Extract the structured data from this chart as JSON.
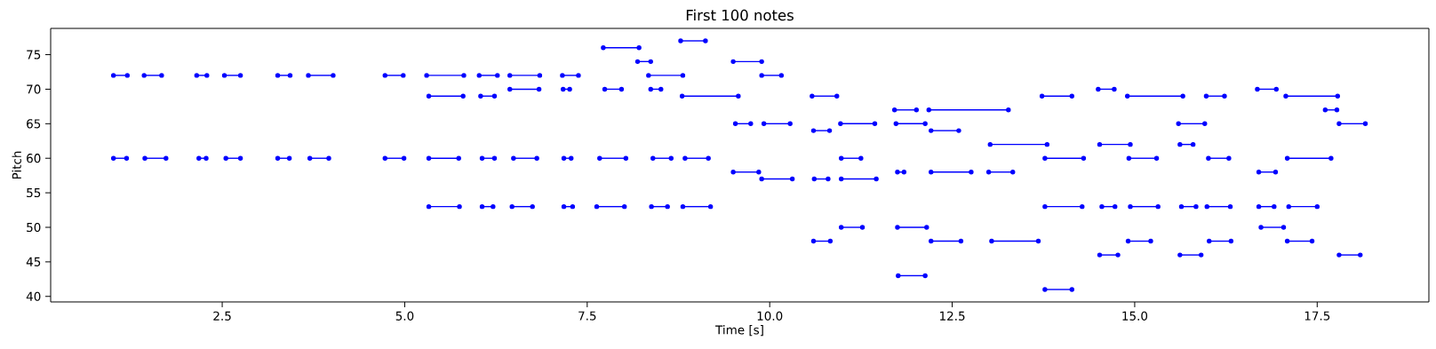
{
  "chart_data": {
    "type": "line",
    "title": "First 100 notes",
    "xlabel": "Time [s]",
    "ylabel": "Pitch",
    "marker": "circle",
    "line_style": "solid",
    "grid": false,
    "xlim": [
      0.15,
      19.03
    ],
    "ylim": [
      39.2,
      78.8
    ],
    "xticks": [
      {
        "value": 2.5,
        "label": "2.5"
      },
      {
        "value": 5.0,
        "label": "5.0"
      },
      {
        "value": 7.5,
        "label": "7.5"
      },
      {
        "value": 10.0,
        "label": "10.0"
      },
      {
        "value": 12.5,
        "label": "12.5"
      },
      {
        "value": 15.0,
        "label": "15.0"
      },
      {
        "value": 17.5,
        "label": "17.5"
      }
    ],
    "yticks": [
      40,
      45,
      50,
      55,
      60,
      65,
      70,
      75
    ],
    "series": [
      {
        "color": "#0000ff",
        "x": [
          1.01,
          1.2
        ],
        "values": [
          72,
          72
        ]
      },
      {
        "color": "#0000ff",
        "x": [
          1.43,
          1.67
        ],
        "values": [
          72,
          72
        ]
      },
      {
        "color": "#0000ff",
        "x": [
          2.15,
          2.29
        ],
        "values": [
          72,
          72
        ]
      },
      {
        "color": "#0000ff",
        "x": [
          2.53,
          2.75
        ],
        "values": [
          72,
          72
        ]
      },
      {
        "color": "#0000ff",
        "x": [
          3.26,
          3.43
        ],
        "values": [
          72,
          72
        ]
      },
      {
        "color": "#0000ff",
        "x": [
          3.68,
          4.02
        ],
        "values": [
          72,
          72
        ]
      },
      {
        "color": "#0000ff",
        "x": [
          1.01,
          1.19
        ],
        "values": [
          60,
          60
        ]
      },
      {
        "color": "#0000ff",
        "x": [
          1.44,
          1.73
        ],
        "values": [
          60,
          60
        ]
      },
      {
        "color": "#0000ff",
        "x": [
          2.18,
          2.28
        ],
        "values": [
          60,
          60
        ]
      },
      {
        "color": "#0000ff",
        "x": [
          2.55,
          2.75
        ],
        "values": [
          60,
          60
        ]
      },
      {
        "color": "#0000ff",
        "x": [
          3.26,
          3.42
        ],
        "values": [
          60,
          60
        ]
      },
      {
        "color": "#0000ff",
        "x": [
          3.7,
          3.96
        ],
        "values": [
          60,
          60
        ]
      },
      {
        "color": "#0000ff",
        "x": [
          4.73,
          4.98
        ],
        "values": [
          72,
          72
        ]
      },
      {
        "color": "#0000ff",
        "x": [
          5.3,
          5.81
        ],
        "values": [
          72,
          72
        ]
      },
      {
        "color": "#0000ff",
        "x": [
          6.02,
          6.27
        ],
        "values": [
          72,
          72
        ]
      },
      {
        "color": "#0000ff",
        "x": [
          6.44,
          6.85
        ],
        "values": [
          72,
          72
        ]
      },
      {
        "color": "#0000ff",
        "x": [
          7.16,
          7.38
        ],
        "values": [
          72,
          72
        ]
      },
      {
        "color": "#0000ff",
        "x": [
          8.34,
          8.81
        ],
        "values": [
          72,
          72
        ]
      },
      {
        "color": "#0000ff",
        "x": [
          6.44,
          6.84
        ],
        "values": [
          70,
          70
        ]
      },
      {
        "color": "#0000ff",
        "x": [
          7.17,
          7.26
        ],
        "values": [
          70,
          70
        ]
      },
      {
        "color": "#0000ff",
        "x": [
          7.74,
          7.97
        ],
        "values": [
          70,
          70
        ]
      },
      {
        "color": "#0000ff",
        "x": [
          8.37,
          8.51
        ],
        "values": [
          70,
          70
        ]
      },
      {
        "color": "#0000ff",
        "x": [
          5.33,
          5.8
        ],
        "values": [
          69,
          69
        ]
      },
      {
        "color": "#0000ff",
        "x": [
          6.04,
          6.23
        ],
        "values": [
          69,
          69
        ]
      },
      {
        "color": "#0000ff",
        "x": [
          8.8,
          9.57
        ],
        "values": [
          69,
          69
        ]
      },
      {
        "color": "#0000ff",
        "x": [
          7.72,
          8.21
        ],
        "values": [
          76,
          76
        ]
      },
      {
        "color": "#0000ff",
        "x": [
          8.19,
          8.37
        ],
        "values": [
          74,
          74
        ]
      },
      {
        "color": "#0000ff",
        "x": [
          8.78,
          9.12
        ],
        "values": [
          77,
          77
        ]
      },
      {
        "color": "#0000ff",
        "x": [
          4.73,
          4.99
        ],
        "values": [
          60,
          60
        ]
      },
      {
        "color": "#0000ff",
        "x": [
          5.33,
          5.74
        ],
        "values": [
          60,
          60
        ]
      },
      {
        "color": "#0000ff",
        "x": [
          6.06,
          6.23
        ],
        "values": [
          60,
          60
        ]
      },
      {
        "color": "#0000ff",
        "x": [
          6.49,
          6.81
        ],
        "values": [
          60,
          60
        ]
      },
      {
        "color": "#0000ff",
        "x": [
          7.18,
          7.28
        ],
        "values": [
          60,
          60
        ]
      },
      {
        "color": "#0000ff",
        "x": [
          7.67,
          8.03
        ],
        "values": [
          60,
          60
        ]
      },
      {
        "color": "#0000ff",
        "x": [
          8.4,
          8.65
        ],
        "values": [
          60,
          60
        ]
      },
      {
        "color": "#0000ff",
        "x": [
          8.84,
          9.16
        ],
        "values": [
          60,
          60
        ]
      },
      {
        "color": "#0000ff",
        "x": [
          5.33,
          5.75
        ],
        "values": [
          53,
          53
        ]
      },
      {
        "color": "#0000ff",
        "x": [
          6.06,
          6.21
        ],
        "values": [
          53,
          53
        ]
      },
      {
        "color": "#0000ff",
        "x": [
          6.47,
          6.75
        ],
        "values": [
          53,
          53
        ]
      },
      {
        "color": "#0000ff",
        "x": [
          7.18,
          7.3
        ],
        "values": [
          53,
          53
        ]
      },
      {
        "color": "#0000ff",
        "x": [
          7.63,
          8.01
        ],
        "values": [
          53,
          53
        ]
      },
      {
        "color": "#0000ff",
        "x": [
          8.38,
          8.6
        ],
        "values": [
          53,
          53
        ]
      },
      {
        "color": "#0000ff",
        "x": [
          8.81,
          9.19
        ],
        "values": [
          53,
          53
        ]
      },
      {
        "color": "#0000ff",
        "x": [
          9.5,
          9.89
        ],
        "values": [
          74,
          74
        ]
      },
      {
        "color": "#0000ff",
        "x": [
          9.89,
          10.16
        ],
        "values": [
          72,
          72
        ]
      },
      {
        "color": "#0000ff",
        "x": [
          10.58,
          10.92
        ],
        "values": [
          69,
          69
        ]
      },
      {
        "color": "#0000ff",
        "x": [
          13.73,
          14.14
        ],
        "values": [
          69,
          69
        ]
      },
      {
        "color": "#0000ff",
        "x": [
          11.71,
          12.01
        ],
        "values": [
          67,
          67
        ]
      },
      {
        "color": "#0000ff",
        "x": [
          12.18,
          13.27
        ],
        "values": [
          67,
          67
        ]
      },
      {
        "color": "#0000ff",
        "x": [
          9.53,
          9.74
        ],
        "values": [
          65,
          65
        ]
      },
      {
        "color": "#0000ff",
        "x": [
          9.92,
          10.28
        ],
        "values": [
          65,
          65
        ]
      },
      {
        "color": "#0000ff",
        "x": [
          10.97,
          11.44
        ],
        "values": [
          65,
          65
        ]
      },
      {
        "color": "#0000ff",
        "x": [
          11.73,
          12.13
        ],
        "values": [
          65,
          65
        ]
      },
      {
        "color": "#0000ff",
        "x": [
          10.6,
          10.82
        ],
        "values": [
          64,
          64
        ]
      },
      {
        "color": "#0000ff",
        "x": [
          12.21,
          12.59
        ],
        "values": [
          64,
          64
        ]
      },
      {
        "color": "#0000ff",
        "x": [
          13.02,
          13.8
        ],
        "values": [
          62,
          62
        ]
      },
      {
        "color": "#0000ff",
        "x": [
          10.98,
          11.25
        ],
        "values": [
          60,
          60
        ]
      },
      {
        "color": "#0000ff",
        "x": [
          13.77,
          14.3
        ],
        "values": [
          60,
          60
        ]
      },
      {
        "color": "#0000ff",
        "x": [
          9.5,
          9.85
        ],
        "values": [
          58,
          58
        ]
      },
      {
        "color": "#0000ff",
        "x": [
          11.75,
          11.84
        ],
        "values": [
          58,
          58
        ]
      },
      {
        "color": "#0000ff",
        "x": [
          12.21,
          12.76
        ],
        "values": [
          58,
          58
        ]
      },
      {
        "color": "#0000ff",
        "x": [
          13.0,
          13.33
        ],
        "values": [
          58,
          58
        ]
      },
      {
        "color": "#0000ff",
        "x": [
          9.89,
          10.31
        ],
        "values": [
          57,
          57
        ]
      },
      {
        "color": "#0000ff",
        "x": [
          10.61,
          10.8
        ],
        "values": [
          57,
          57
        ]
      },
      {
        "color": "#0000ff",
        "x": [
          10.98,
          11.46
        ],
        "values": [
          57,
          57
        ]
      },
      {
        "color": "#0000ff",
        "x": [
          13.77,
          14.28
        ],
        "values": [
          53,
          53
        ]
      },
      {
        "color": "#0000ff",
        "x": [
          10.98,
          11.27
        ],
        "values": [
          50,
          50
        ]
      },
      {
        "color": "#0000ff",
        "x": [
          11.75,
          12.15
        ],
        "values": [
          50,
          50
        ]
      },
      {
        "color": "#0000ff",
        "x": [
          10.6,
          10.83
        ],
        "values": [
          48,
          48
        ]
      },
      {
        "color": "#0000ff",
        "x": [
          12.21,
          12.62
        ],
        "values": [
          48,
          48
        ]
      },
      {
        "color": "#0000ff",
        "x": [
          13.04,
          13.68
        ],
        "values": [
          48,
          48
        ]
      },
      {
        "color": "#0000ff",
        "x": [
          11.76,
          12.13
        ],
        "values": [
          43,
          43
        ]
      },
      {
        "color": "#0000ff",
        "x": [
          13.77,
          14.14
        ],
        "values": [
          41,
          41
        ]
      },
      {
        "color": "#0000ff",
        "x": [
          14.5,
          14.72
        ],
        "values": [
          70,
          70
        ]
      },
      {
        "color": "#0000ff",
        "x": [
          16.68,
          16.94
        ],
        "values": [
          70,
          70
        ]
      },
      {
        "color": "#0000ff",
        "x": [
          14.9,
          15.66
        ],
        "values": [
          69,
          69
        ]
      },
      {
        "color": "#0000ff",
        "x": [
          15.98,
          16.23
        ],
        "values": [
          69,
          69
        ]
      },
      {
        "color": "#0000ff",
        "x": [
          17.07,
          17.78
        ],
        "values": [
          69,
          69
        ]
      },
      {
        "color": "#0000ff",
        "x": [
          17.61,
          17.77
        ],
        "values": [
          67,
          67
        ]
      },
      {
        "color": "#0000ff",
        "x": [
          15.6,
          15.96
        ],
        "values": [
          65,
          65
        ]
      },
      {
        "color": "#0000ff",
        "x": [
          17.8,
          18.16
        ],
        "values": [
          65,
          65
        ]
      },
      {
        "color": "#0000ff",
        "x": [
          14.52,
          14.94
        ],
        "values": [
          62,
          62
        ]
      },
      {
        "color": "#0000ff",
        "x": [
          15.62,
          15.8
        ],
        "values": [
          62,
          62
        ]
      },
      {
        "color": "#0000ff",
        "x": [
          14.92,
          15.3
        ],
        "values": [
          60,
          60
        ]
      },
      {
        "color": "#0000ff",
        "x": [
          16.01,
          16.29
        ],
        "values": [
          60,
          60
        ]
      },
      {
        "color": "#0000ff",
        "x": [
          17.09,
          17.69
        ],
        "values": [
          60,
          60
        ]
      },
      {
        "color": "#0000ff",
        "x": [
          16.7,
          16.93
        ],
        "values": [
          58,
          58
        ]
      },
      {
        "color": "#0000ff",
        "x": [
          14.55,
          14.73
        ],
        "values": [
          53,
          53
        ]
      },
      {
        "color": "#0000ff",
        "x": [
          14.94,
          15.32
        ],
        "values": [
          53,
          53
        ]
      },
      {
        "color": "#0000ff",
        "x": [
          15.64,
          15.84
        ],
        "values": [
          53,
          53
        ]
      },
      {
        "color": "#0000ff",
        "x": [
          15.99,
          16.31
        ],
        "values": [
          53,
          53
        ]
      },
      {
        "color": "#0000ff",
        "x": [
          16.7,
          16.91
        ],
        "values": [
          53,
          53
        ]
      },
      {
        "color": "#0000ff",
        "x": [
          17.11,
          17.5
        ],
        "values": [
          53,
          53
        ]
      },
      {
        "color": "#0000ff",
        "x": [
          16.73,
          17.04
        ],
        "values": [
          50,
          50
        ]
      },
      {
        "color": "#0000ff",
        "x": [
          14.91,
          15.22
        ],
        "values": [
          48,
          48
        ]
      },
      {
        "color": "#0000ff",
        "x": [
          16.02,
          16.32
        ],
        "values": [
          48,
          48
        ]
      },
      {
        "color": "#0000ff",
        "x": [
          17.09,
          17.43
        ],
        "values": [
          48,
          48
        ]
      },
      {
        "color": "#0000ff",
        "x": [
          14.52,
          14.77
        ],
        "values": [
          46,
          46
        ]
      },
      {
        "color": "#0000ff",
        "x": [
          15.62,
          15.91
        ],
        "values": [
          46,
          46
        ]
      },
      {
        "color": "#0000ff",
        "x": [
          17.8,
          18.09
        ],
        "values": [
          46,
          46
        ]
      }
    ]
  }
}
